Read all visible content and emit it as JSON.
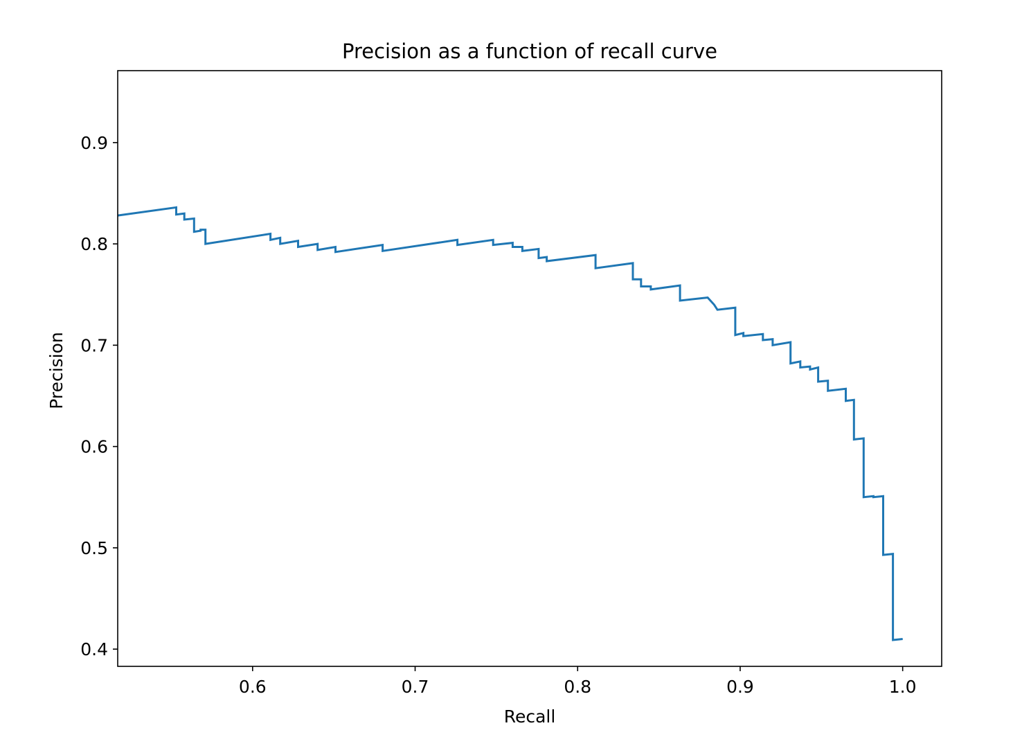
{
  "chart_data": {
    "type": "line",
    "title": "Precision as a function of recall curve",
    "xlabel": "Recall",
    "ylabel": "Precision",
    "xlim": [
      0.517,
      1.024
    ],
    "ylim": [
      0.383,
      0.971
    ],
    "x_ticks": [
      0.6,
      0.7,
      0.8,
      0.9,
      1.0
    ],
    "x_tick_labels": [
      "0.6",
      "0.7",
      "0.8",
      "0.9",
      "1.0"
    ],
    "y_ticks": [
      0.4,
      0.5,
      0.6,
      0.7,
      0.8,
      0.9
    ],
    "y_tick_labels": [
      "0.4",
      "0.5",
      "0.6",
      "0.7",
      "0.8",
      "0.9"
    ],
    "grid": false,
    "line_color": "#1f77b4",
    "series": [
      {
        "x": [
          0.517,
          0.553,
          0.553,
          0.558,
          0.558,
          0.564,
          0.564,
          0.568,
          0.568,
          0.571,
          0.571,
          0.611,
          0.611,
          0.617,
          0.617,
          0.628,
          0.628,
          0.64,
          0.64,
          0.651,
          0.651,
          0.68,
          0.68,
          0.726,
          0.726,
          0.748,
          0.748,
          0.76,
          0.76,
          0.766,
          0.766,
          0.776,
          0.776,
          0.781,
          0.781,
          0.811,
          0.811,
          0.834,
          0.834,
          0.839,
          0.839,
          0.845,
          0.845,
          0.863,
          0.863,
          0.88,
          0.884,
          0.886,
          0.886,
          0.897,
          0.897,
          0.902,
          0.902,
          0.914,
          0.914,
          0.92,
          0.92,
          0.931,
          0.931,
          0.937,
          0.937,
          0.943,
          0.943,
          0.948,
          0.948,
          0.954,
          0.954,
          0.965,
          0.965,
          0.97,
          0.97,
          0.976,
          0.976,
          0.982,
          0.982,
          0.988,
          0.988,
          0.994,
          0.994,
          1.0
        ],
        "y": [
          0.828,
          0.836,
          0.829,
          0.83,
          0.824,
          0.825,
          0.812,
          0.813,
          0.814,
          0.814,
          0.8,
          0.81,
          0.804,
          0.806,
          0.8,
          0.803,
          0.797,
          0.8,
          0.794,
          0.797,
          0.792,
          0.799,
          0.793,
          0.804,
          0.799,
          0.804,
          0.799,
          0.801,
          0.797,
          0.797,
          0.793,
          0.795,
          0.786,
          0.787,
          0.783,
          0.789,
          0.776,
          0.781,
          0.765,
          0.765,
          0.758,
          0.758,
          0.755,
          0.759,
          0.744,
          0.747,
          0.74,
          0.735,
          0.735,
          0.737,
          0.71,
          0.712,
          0.709,
          0.711,
          0.705,
          0.706,
          0.7,
          0.703,
          0.682,
          0.684,
          0.678,
          0.679,
          0.676,
          0.678,
          0.664,
          0.665,
          0.655,
          0.657,
          0.645,
          0.646,
          0.607,
          0.608,
          0.55,
          0.551,
          0.55,
          0.551,
          0.493,
          0.494,
          0.409,
          0.41
        ]
      }
    ]
  }
}
